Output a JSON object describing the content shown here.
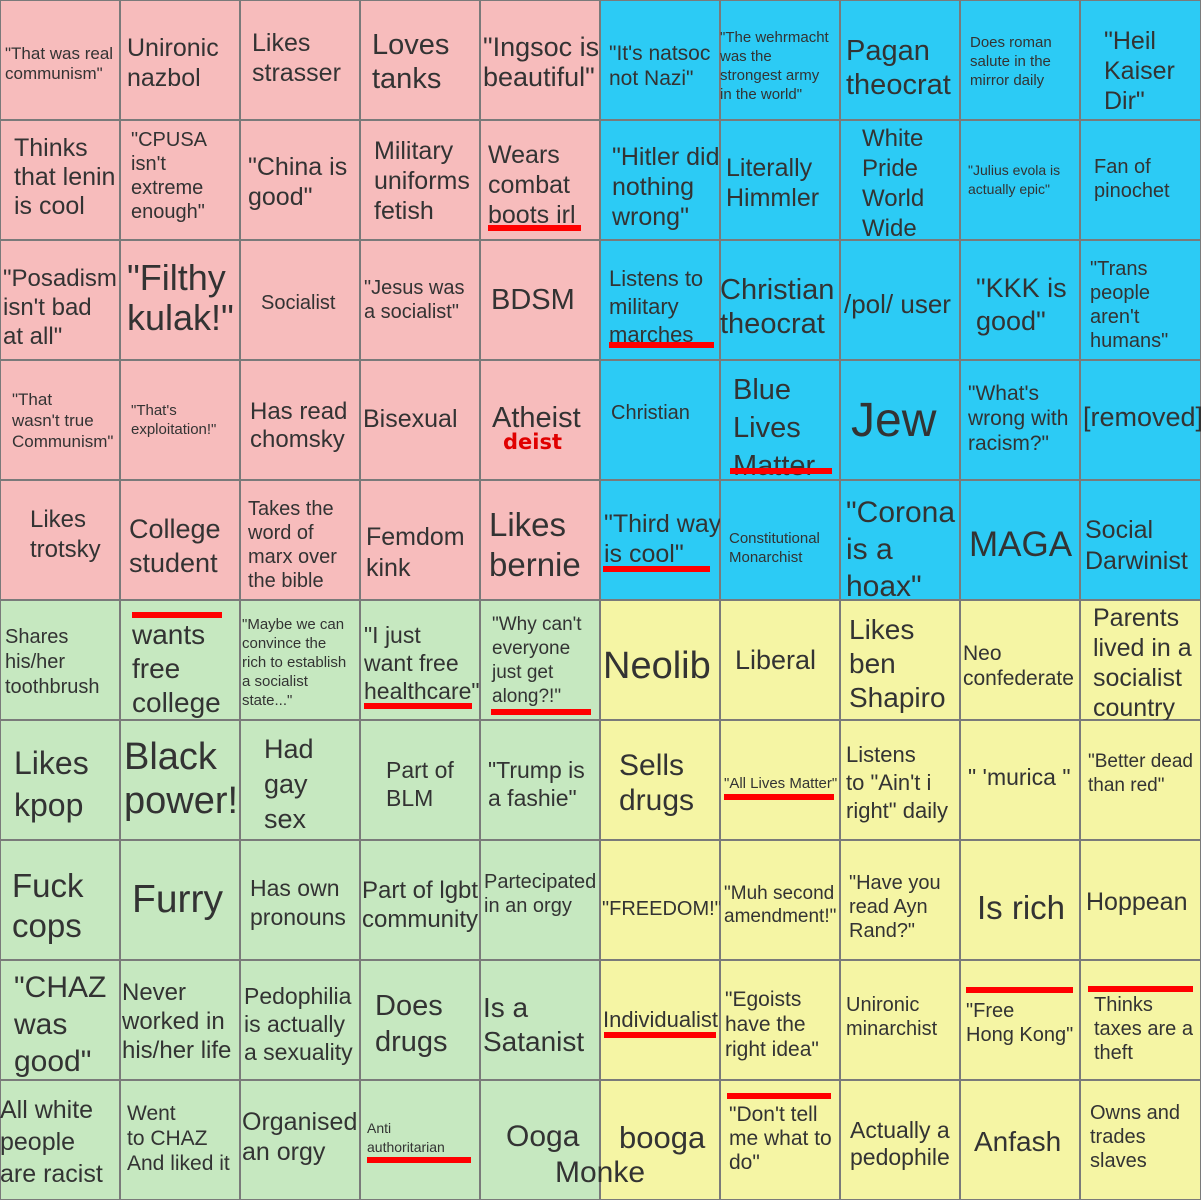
{
  "colors": {
    "red": "#f7bcbc",
    "blue": "#2ccbf5",
    "green": "#c6e8c0",
    "yellow": "#f5f5a4",
    "underline": "#ff0000",
    "annotation": "#e00000"
  },
  "cells": [
    {
      "t": "\"That was real\ncommunism\"",
      "q": "red"
    },
    {
      "t": "Unironic\nnazbol",
      "q": "red"
    },
    {
      "t": "Likes\nstrasser",
      "q": "red"
    },
    {
      "t": "Loves\ntanks",
      "q": "red"
    },
    {
      "t": "\"Ingsoc is\nbeautiful\"",
      "q": "red"
    },
    {
      "t": "\"It's natsoc\nnot Nazi\"",
      "q": "blue"
    },
    {
      "t": "\"The wehrmacht\nwas the\nstrongest army\nin the world\"",
      "q": "blue"
    },
    {
      "t": "Pagan\ntheocrat",
      "q": "blue"
    },
    {
      "t": "Does roman\nsalute in the\nmirror daily",
      "q": "blue"
    },
    {
      "t": "\"Heil\nKaiser\nDir\"",
      "q": "blue"
    },
    {
      "t": "Thinks\nthat lenin\nis cool",
      "q": "red"
    },
    {
      "t": "\"CPUSA\nisn't\nextreme\nenough\"",
      "q": "red"
    },
    {
      "t": "\"China is\ngood\"",
      "q": "red"
    },
    {
      "t": "Military\nuniforms\nfetish",
      "q": "red"
    },
    {
      "t": "Wears\ncombat\nboots irl",
      "q": "red"
    },
    {
      "t": "\"Hitler did\nnothing\nwrong\"",
      "q": "blue"
    },
    {
      "t": "Literally\nHimmler",
      "q": "blue"
    },
    {
      "t": "White\nPride\nWorld\nWide",
      "q": "blue"
    },
    {
      "t": "\"Julius evola is\nactually epic\"",
      "q": "blue"
    },
    {
      "t": "Fan of\npinochet",
      "q": "blue"
    },
    {
      "t": "\"Posadism\nisn't bad\nat all\"",
      "q": "red"
    },
    {
      "t": "\"Filthy\nkulak!\"",
      "q": "red"
    },
    {
      "t": "Socialist",
      "q": "red"
    },
    {
      "t": "\"Jesus was\na socialist\"",
      "q": "red"
    },
    {
      "t": "BDSM",
      "q": "red"
    },
    {
      "t": "Listens to\nmilitary\nmarches",
      "q": "blue"
    },
    {
      "t": "Christian\ntheocrat",
      "q": "blue"
    },
    {
      "t": "/pol/ user",
      "q": "blue"
    },
    {
      "t": "\"KKK is\ngood\"",
      "q": "blue"
    },
    {
      "t": "\"Trans\npeople\naren't\nhumans\"",
      "q": "blue"
    },
    {
      "t": "\"That\nwasn't true\nCommunism\"",
      "q": "red"
    },
    {
      "t": "\"That's\nexploitation!\"",
      "q": "red"
    },
    {
      "t": "Has read\nchomsky",
      "q": "red"
    },
    {
      "t": "Bisexual",
      "q": "red"
    },
    {
      "t": "Atheist",
      "q": "red"
    },
    {
      "t": "Christian",
      "q": "blue"
    },
    {
      "t": "Blue\nLives\nMatter",
      "q": "blue"
    },
    {
      "t": "Jew",
      "q": "blue"
    },
    {
      "t": "\"What's\nwrong with\nracism?\"",
      "q": "blue"
    },
    {
      "t": "[removed]",
      "q": "blue"
    },
    {
      "t": "Likes\ntrotsky",
      "q": "red"
    },
    {
      "t": "College\nstudent",
      "q": "red"
    },
    {
      "t": "Takes the\nword of\nmarx over\nthe bible",
      "q": "red"
    },
    {
      "t": "Femdom\nkink",
      "q": "red"
    },
    {
      "t": "Likes\nbernie",
      "q": "red"
    },
    {
      "t": "\"Third way\nis cool\"",
      "q": "blue"
    },
    {
      "t": "Constitutional\nMonarchist",
      "q": "blue"
    },
    {
      "t": "\"Corona\nis a\nhoax\"",
      "q": "blue"
    },
    {
      "t": "MAGA",
      "q": "blue"
    },
    {
      "t": "Social\nDarwinist",
      "q": "blue"
    },
    {
      "t": "Shares\nhis/her\ntoothbrush",
      "q": "green"
    },
    {
      "t": "wants\nfree\ncollege",
      "q": "green"
    },
    {
      "t": "\"Maybe we can\nconvince the\nrich to establish\na socialist\nstate...\"",
      "q": "green"
    },
    {
      "t": "\"I just\nwant free\nhealthcare\"",
      "q": "green"
    },
    {
      "t": "\"Why can't\neveryone\njust get\nalong?!\"",
      "q": "green"
    },
    {
      "t": "Neolib",
      "q": "yellow"
    },
    {
      "t": "Liberal",
      "q": "yellow"
    },
    {
      "t": "Likes\nben\nShapiro",
      "q": "yellow"
    },
    {
      "t": "Neo\nconfederate",
      "q": "yellow"
    },
    {
      "t": "Parents\nlived in a\nsocialist\ncountry",
      "q": "yellow"
    },
    {
      "t": "Likes\nkpop",
      "q": "green"
    },
    {
      "t": "Black\npower!",
      "q": "green"
    },
    {
      "t": "Had\ngay\nsex",
      "q": "green"
    },
    {
      "t": "Part of\nBLM",
      "q": "green"
    },
    {
      "t": "\"Trump is\na fashie\"",
      "q": "green"
    },
    {
      "t": "Sells\ndrugs",
      "q": "yellow"
    },
    {
      "t": "\"All Lives Matter\"",
      "q": "yellow"
    },
    {
      "t": "Listens\nto \"Ain't i\nright\" daily",
      "q": "yellow"
    },
    {
      "t": "\" 'murica \"",
      "q": "yellow"
    },
    {
      "t": "\"Better dead\nthan red\"",
      "q": "yellow"
    },
    {
      "t": "Fuck\ncops",
      "q": "green"
    },
    {
      "t": "Furry",
      "q": "green"
    },
    {
      "t": "Has own\npronouns",
      "q": "green"
    },
    {
      "t": "Part of lgbt\ncommunity",
      "q": "green"
    },
    {
      "t": "Partecipated\nin an orgy",
      "q": "green"
    },
    {
      "t": "\"FREEDOM!\"",
      "q": "yellow"
    },
    {
      "t": "\"Muh second\namendment!\"",
      "q": "yellow"
    },
    {
      "t": "\"Have you\nread Ayn\nRand?\"",
      "q": "yellow"
    },
    {
      "t": "Is rich",
      "q": "yellow"
    },
    {
      "t": "Hoppean",
      "q": "yellow"
    },
    {
      "t": "\"CHAZ\nwas\ngood\"",
      "q": "green"
    },
    {
      "t": "Never\nworked in\nhis/her life",
      "q": "green"
    },
    {
      "t": "Pedophilia\nis actually\na sexuality",
      "q": "green"
    },
    {
      "t": "Does\ndrugs",
      "q": "green"
    },
    {
      "t": "Is a\nSatanist",
      "q": "green"
    },
    {
      "t": "Individualist",
      "q": "yellow"
    },
    {
      "t": "\"Egoists\nhave the\nright idea\"",
      "q": "yellow"
    },
    {
      "t": "Unironic\nminarchist",
      "q": "yellow"
    },
    {
      "t": "\"Free\nHong Kong\"",
      "q": "yellow"
    },
    {
      "t": "Thinks\ntaxes are a\ntheft",
      "q": "yellow"
    },
    {
      "t": "All white\npeople\nare racist",
      "q": "green"
    },
    {
      "t": "Went\nto CHAZ\nAnd liked it",
      "q": "green"
    },
    {
      "t": "Organised\nan orgy",
      "q": "green"
    },
    {
      "t": "Anti\nauthoritarian",
      "q": "green"
    },
    {
      "t": "Ooga",
      "q": "green"
    },
    {
      "t": "booga",
      "q": "yellow"
    },
    {
      "t": "\"Don't tell\nme what to\ndo\"",
      "q": "yellow"
    },
    {
      "t": "Actually a\npedophile",
      "q": "yellow"
    },
    {
      "t": "Anfash",
      "q": "yellow"
    },
    {
      "t": "Owns and\ntrades\nslaves",
      "q": "yellow"
    }
  ],
  "annotations": {
    "deist": "deist",
    "monke": "Monke"
  }
}
